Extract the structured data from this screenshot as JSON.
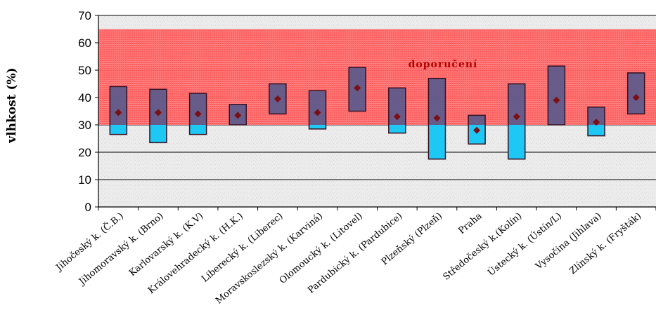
{
  "chart_data": {
    "type": "bar",
    "ylabel": "vlhkost (%)",
    "ylim": [
      0,
      70
    ],
    "yticks": [
      "0",
      "10",
      "20",
      "30",
      "40",
      "50",
      "60",
      "70"
    ],
    "recommended_band": {
      "label": "doporučení",
      "min": 30,
      "max": 65,
      "color": "#ff5a5a"
    },
    "colors": {
      "box_fill": "#5a5a8c",
      "box_stroke": "#3a1020",
      "below_fill": "#1ec8f5",
      "mean_marker": "#7a0f14"
    },
    "categories": [
      "Jihočeský k. (Č.B.)",
      "Jihomoravský k. (Brno)",
      "Karlovarský k. (K.V)",
      "Královehradecký k. (H.K.)",
      "Liberecký k. (Liberec)",
      "Moravskoslezský k. (Karviná)",
      "Olomoucký k. (Litovel)",
      "Pardubický k. (Pardubice)",
      "Plzeňský (Plzeň)",
      "Praha",
      "Středočeský k.(Kolín)",
      "Ústecký k. (Ústín/L)",
      "Vysočina (Jihlava)",
      "Zlínský k. (Fryšták)"
    ],
    "series": [
      {
        "name": "min",
        "values": [
          26.5,
          23.5,
          26.5,
          30,
          34,
          28.5,
          35,
          27,
          17.5,
          23,
          17.5,
          30,
          26,
          34
        ]
      },
      {
        "name": "max",
        "values": [
          44,
          43,
          41.5,
          37.5,
          45,
          42.5,
          51,
          43.5,
          47,
          33.5,
          45,
          51.5,
          36.5,
          49
        ]
      },
      {
        "name": "mean",
        "values": [
          34.5,
          34.5,
          34,
          33.5,
          39.5,
          34.5,
          43.5,
          33,
          32.5,
          28,
          33,
          39,
          31,
          40
        ]
      }
    ]
  }
}
